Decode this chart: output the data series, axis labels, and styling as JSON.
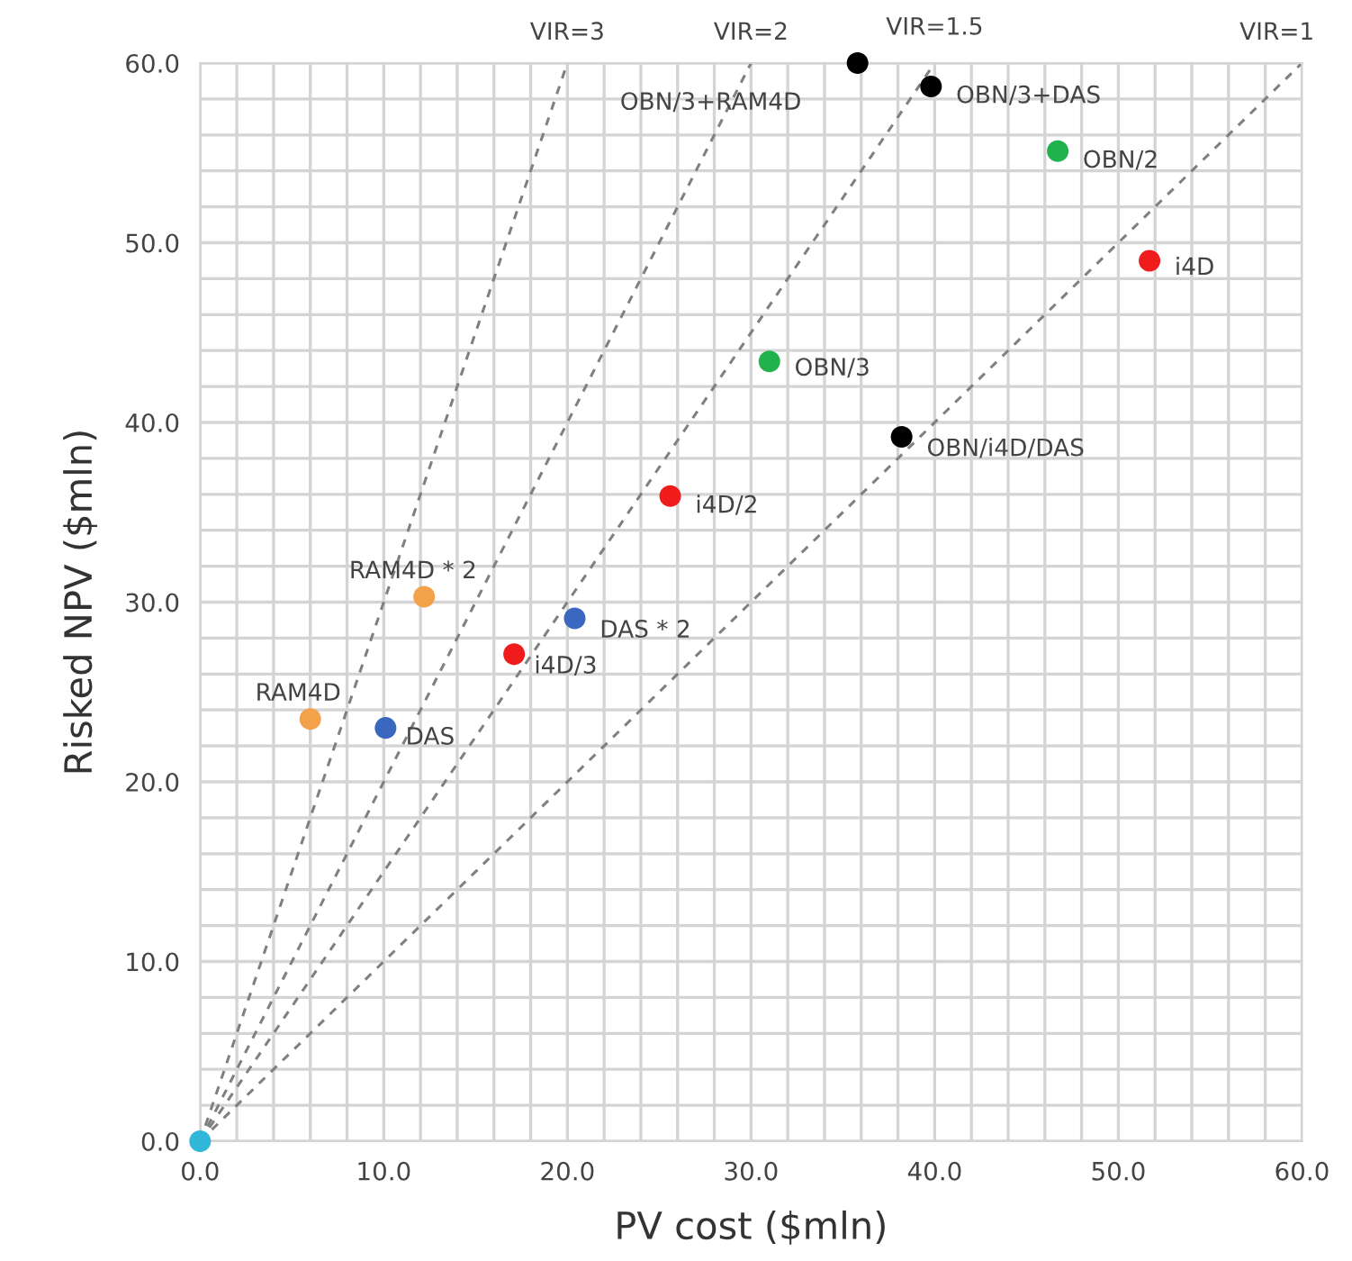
{
  "chart_data": {
    "type": "scatter",
    "xlabel": "PV cost ($mln)",
    "ylabel": "Risked NPV ($mln)",
    "xlim": [
      0,
      60
    ],
    "ylim": [
      0,
      60
    ],
    "xticks": [
      {
        "value": 0,
        "label": "0.0"
      },
      {
        "value": 2,
        "label": null
      },
      {
        "value": 4,
        "label": null
      },
      {
        "value": 6,
        "label": null
      },
      {
        "value": 8,
        "label": null
      },
      {
        "value": 10,
        "label": "10.0"
      },
      {
        "value": 12,
        "label": null
      },
      {
        "value": 14,
        "label": null
      },
      {
        "value": 16,
        "label": null
      },
      {
        "value": 18,
        "label": null
      },
      {
        "value": 20,
        "label": "20.0"
      },
      {
        "value": 22,
        "label": null
      },
      {
        "value": 24,
        "label": null
      },
      {
        "value": 26,
        "label": null
      },
      {
        "value": 28,
        "label": null
      },
      {
        "value": 30,
        "label": "30.0"
      },
      {
        "value": 32,
        "label": null
      },
      {
        "value": 34,
        "label": null
      },
      {
        "value": 36,
        "label": null
      },
      {
        "value": 38,
        "label": null
      },
      {
        "value": 40,
        "label": "40.0"
      },
      {
        "value": 42,
        "label": null
      },
      {
        "value": 44,
        "label": null
      },
      {
        "value": 46,
        "label": null
      },
      {
        "value": 48,
        "label": null
      },
      {
        "value": 50,
        "label": "50.0"
      },
      {
        "value": 52,
        "label": null
      },
      {
        "value": 54,
        "label": null
      },
      {
        "value": 56,
        "label": null
      },
      {
        "value": 58,
        "label": null
      },
      {
        "value": 60,
        "label": "60.0"
      }
    ],
    "yticks": [
      {
        "value": 0,
        "label": "0.0"
      },
      {
        "value": 2,
        "label": null
      },
      {
        "value": 4,
        "label": null
      },
      {
        "value": 6,
        "label": null
      },
      {
        "value": 8,
        "label": null
      },
      {
        "value": 10,
        "label": "10.0"
      },
      {
        "value": 12,
        "label": null
      },
      {
        "value": 14,
        "label": null
      },
      {
        "value": 16,
        "label": null
      },
      {
        "value": 18,
        "label": null
      },
      {
        "value": 20,
        "label": "20.0"
      },
      {
        "value": 22,
        "label": null
      },
      {
        "value": 24,
        "label": null
      },
      {
        "value": 26,
        "label": null
      },
      {
        "value": 28,
        "label": null
      },
      {
        "value": 30,
        "label": "30.0"
      },
      {
        "value": 32,
        "label": null
      },
      {
        "value": 34,
        "label": null
      },
      {
        "value": 36,
        "label": null
      },
      {
        "value": 38,
        "label": null
      },
      {
        "value": 40,
        "label": "40.0"
      },
      {
        "value": 42,
        "label": null
      },
      {
        "value": 44,
        "label": null
      },
      {
        "value": 46,
        "label": null
      },
      {
        "value": 48,
        "label": null
      },
      {
        "value": 50,
        "label": "50.0"
      },
      {
        "value": 52,
        "label": null
      },
      {
        "value": 54,
        "label": null
      },
      {
        "value": 56,
        "label": null
      },
      {
        "value": 58,
        "label": null
      },
      {
        "value": 60,
        "label": "60.0"
      }
    ],
    "grid": true,
    "marker": "circle",
    "series": [
      {
        "type": "line",
        "color": "#808080",
        "line_style": "dashed",
        "marker": "none",
        "x": [
          0,
          20
        ],
        "values": [
          0,
          60
        ]
      },
      {
        "type": "line",
        "color": "#808080",
        "line_style": "dashed",
        "marker": "none",
        "x": [
          0,
          30
        ],
        "values": [
          0,
          60
        ]
      },
      {
        "type": "line",
        "color": "#808080",
        "line_style": "dashed",
        "marker": "none",
        "x": [
          0,
          40
        ],
        "values": [
          0,
          60
        ]
      },
      {
        "type": "line",
        "color": "#808080",
        "line_style": "dashed",
        "marker": "none",
        "x": [
          0,
          60
        ],
        "values": [
          0,
          60
        ]
      },
      {
        "color": "#2fb6d8",
        "x": [
          0
        ],
        "values": [
          0
        ]
      },
      {
        "color": "#f4a14b",
        "x": [
          6.0,
          12.2
        ],
        "values": [
          23.5,
          30.3
        ]
      },
      {
        "color": "#3a67c0",
        "x": [
          10.1,
          20.4
        ],
        "values": [
          23.0,
          29.1
        ]
      },
      {
        "color": "#f01b1b",
        "x": [
          17.1,
          25.6,
          51.7
        ],
        "values": [
          27.1,
          35.9,
          49.0
        ]
      },
      {
        "color": "#22b24c",
        "x": [
          31.0,
          46.7
        ],
        "values": [
          43.4,
          55.1
        ]
      },
      {
        "color": "#000000",
        "x": [
          35.8,
          39.8,
          38.2
        ],
        "values": [
          60.0,
          58.7,
          39.2
        ]
      }
    ],
    "annotations": [
      {
        "text": "VIR=3",
        "x": 20,
        "y": 60
      },
      {
        "text": "VIR=2",
        "x": 30,
        "y": 60
      },
      {
        "text": "VIR=1.5",
        "x": 40,
        "y": 60
      },
      {
        "text": "VIR=1",
        "x": 60,
        "y": 60
      },
      {
        "text": "RAM4D",
        "x": 6.0,
        "y": 23.5
      },
      {
        "text": "RAM4D * 2",
        "x": 12.2,
        "y": 30.3
      },
      {
        "text": "DAS",
        "x": 10.1,
        "y": 23.0
      },
      {
        "text": "DAS * 2",
        "x": 20.4,
        "y": 29.1
      },
      {
        "text": "i4D/3",
        "x": 17.1,
        "y": 27.1
      },
      {
        "text": "i4D/2",
        "x": 25.6,
        "y": 35.9
      },
      {
        "text": "i4D",
        "x": 51.7,
        "y": 49.0
      },
      {
        "text": "OBN/3",
        "x": 31.0,
        "y": 43.4
      },
      {
        "text": "OBN/2",
        "x": 46.7,
        "y": 55.1
      },
      {
        "text": "OBN/3+RAM4D",
        "x": 35.8,
        "y": 60.0
      },
      {
        "text": "OBN/3+DAS",
        "x": 39.8,
        "y": 58.7
      },
      {
        "text": "OBN/i4D/DAS",
        "x": 38.2,
        "y": 39.2
      }
    ]
  }
}
